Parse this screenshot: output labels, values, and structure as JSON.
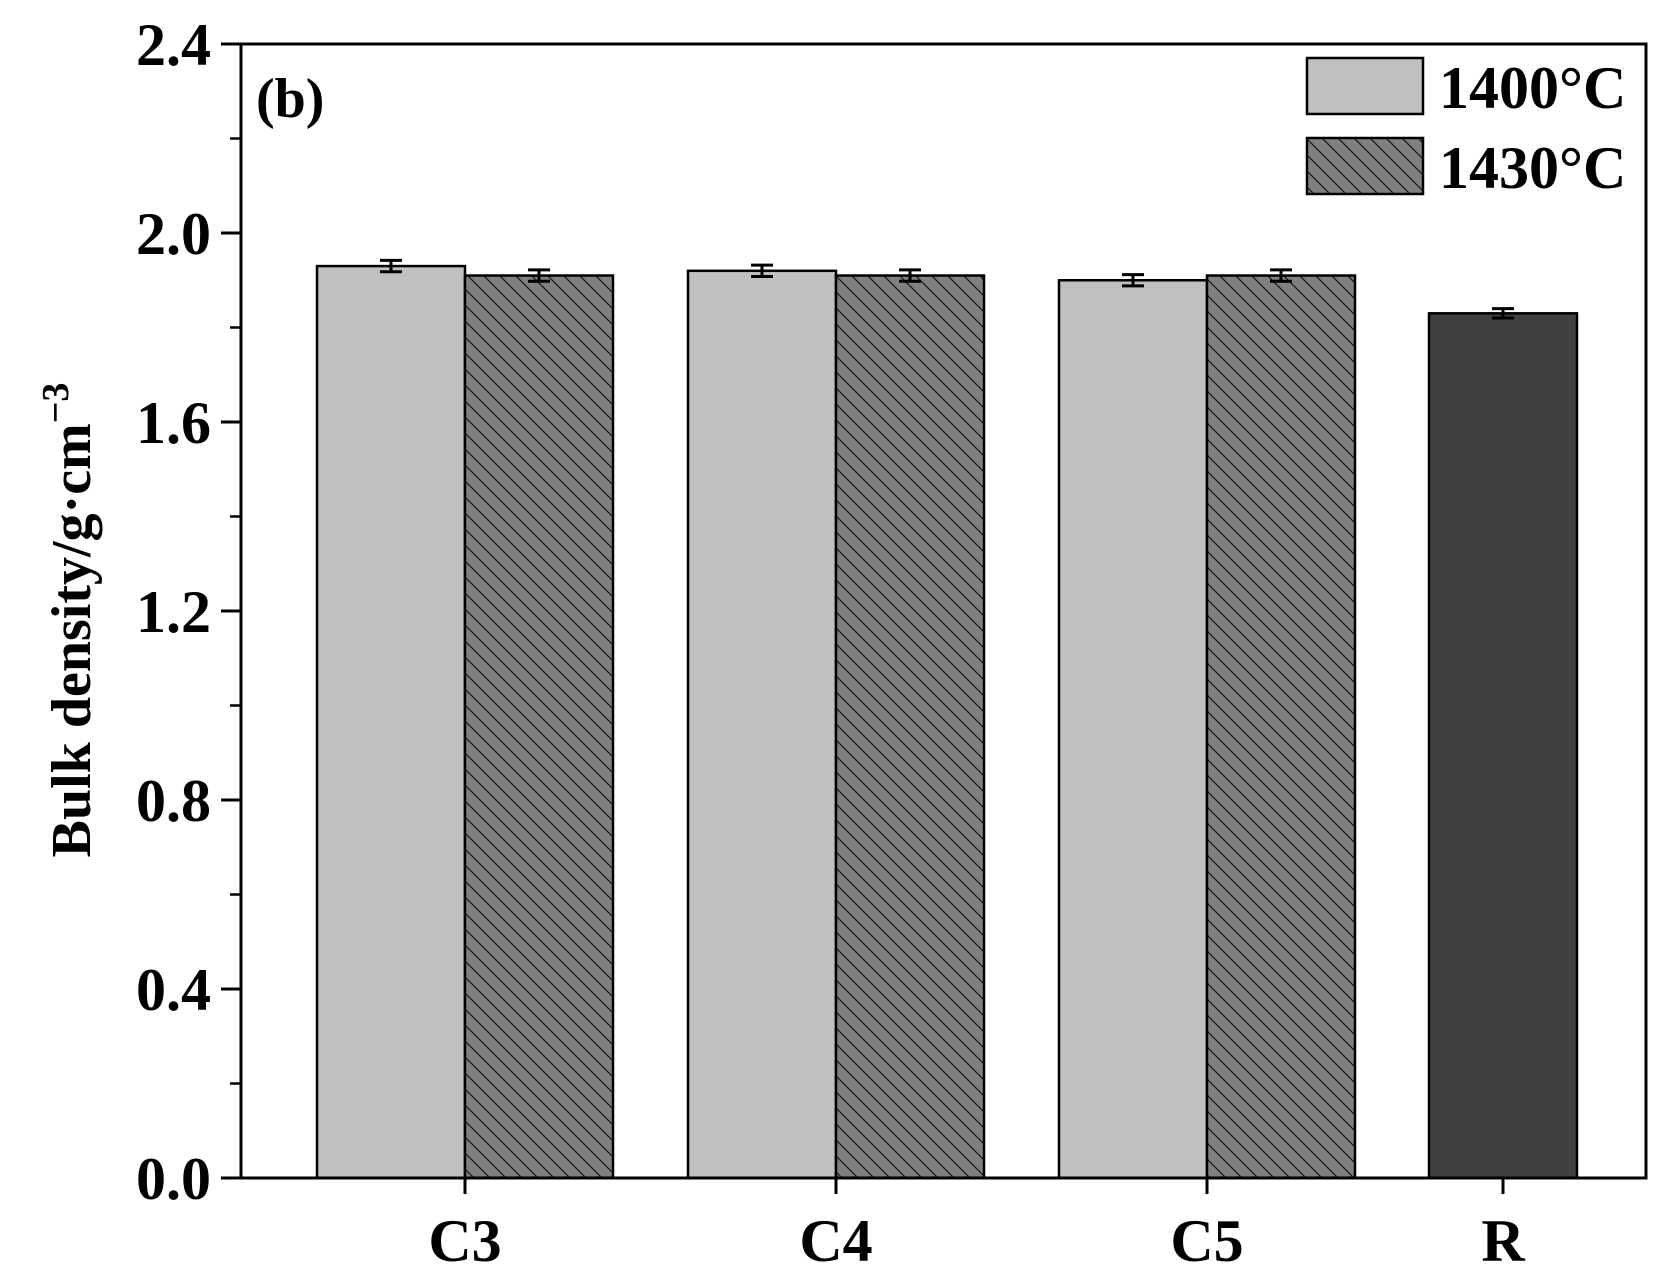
{
  "chart_data": {
    "type": "bar",
    "panel_label": "(b)",
    "ylabel": "Bulk density/g·cm",
    "ylabel_superscript": "−3",
    "xlabel": "",
    "ylim": [
      0,
      2.4
    ],
    "y_ticks": [
      "0.0",
      "0.4",
      "0.8",
      "1.2",
      "1.6",
      "2.0",
      "2.4"
    ],
    "categories": [
      "C3",
      "C4",
      "C5",
      "R"
    ],
    "series": [
      {
        "name": "1400°C",
        "color": "#c0c0c0",
        "pattern": "none",
        "values": [
          1.93,
          1.92,
          1.9,
          null
        ],
        "errors": [
          0.012,
          0.012,
          0.012,
          null
        ]
      },
      {
        "name": "1430°C",
        "color": "#808080",
        "pattern": "diagonal-hatch",
        "values": [
          1.91,
          1.91,
          1.91,
          null
        ],
        "errors": [
          0.012,
          0.012,
          0.012,
          null
        ]
      },
      {
        "name": "R",
        "color": "#404040",
        "pattern": "none",
        "values": [
          null,
          null,
          null,
          1.83
        ],
        "errors": [
          null,
          null,
          null,
          0.01
        ],
        "in_legend": false
      }
    ],
    "legend": {
      "placement": "top-right",
      "entries": [
        "1400°C",
        "1430°C"
      ]
    },
    "grid": false
  }
}
